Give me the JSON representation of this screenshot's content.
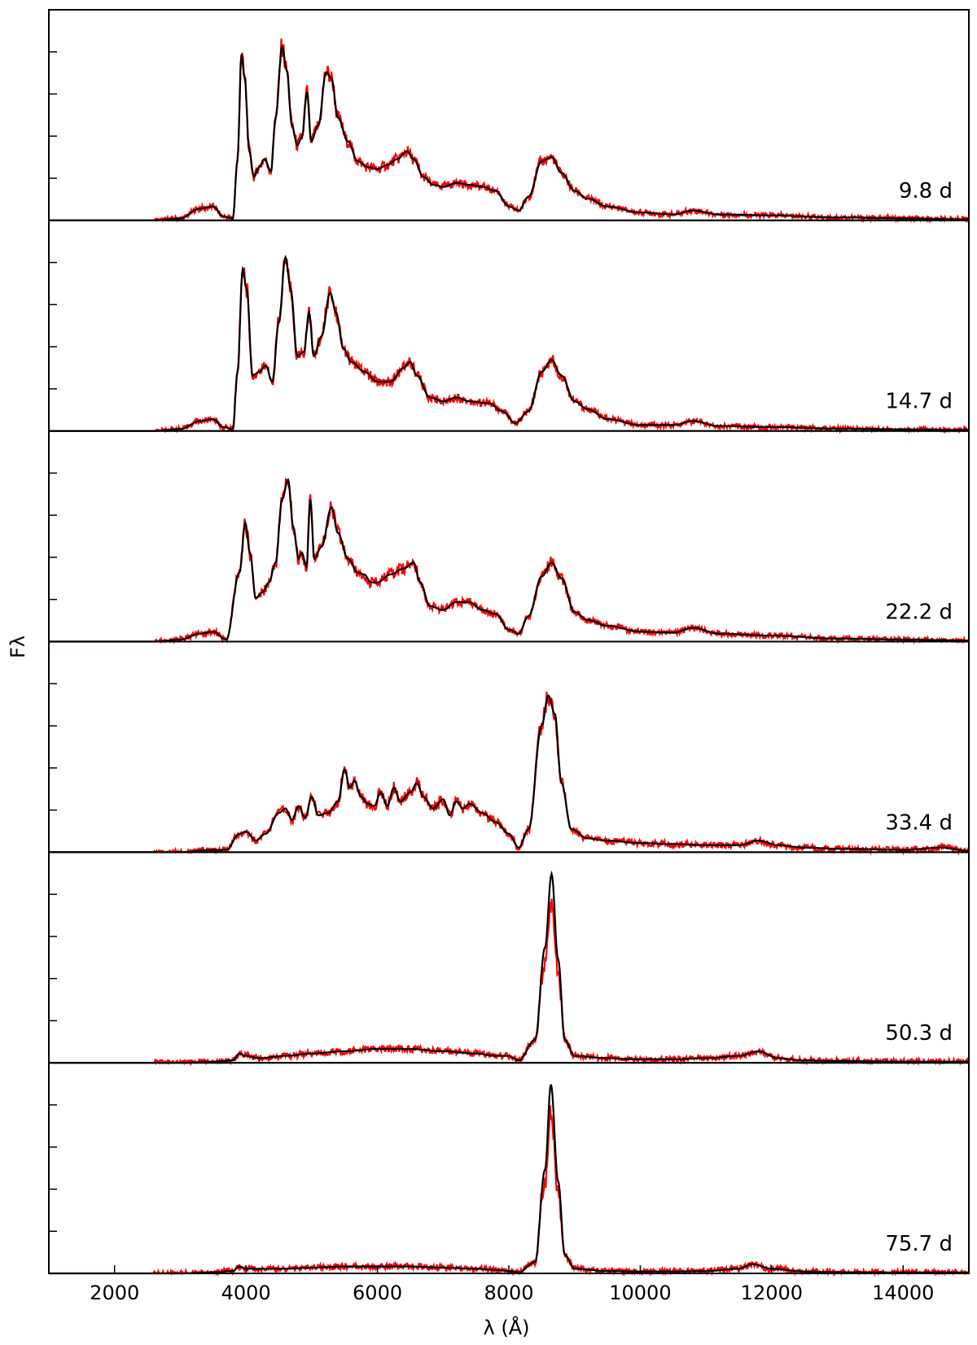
{
  "chart_data": {
    "type": "line",
    "xlabel": "λ (Å)",
    "ylabel": "Fλ",
    "xlim": [
      1000,
      15000
    ],
    "x_ticks": [
      2000,
      4000,
      6000,
      8000,
      10000,
      12000,
      14000
    ],
    "x_tick_labels": [
      "2000",
      "4000",
      "6000",
      "8000",
      "10000",
      "12000",
      "14000"
    ],
    "series_colors": [
      "#ff0000",
      "#000000"
    ],
    "panels": [
      {
        "label": "9.8 d",
        "ylim": [
          0,
          1.05
        ],
        "points": [
          [
            1000,
            0
          ],
          [
            2600,
            0
          ],
          [
            3000,
            0.01
          ],
          [
            3300,
            0.06
          ],
          [
            3500,
            0.07
          ],
          [
            3650,
            0.02
          ],
          [
            3800,
            0.01
          ],
          [
            3870,
            0.3
          ],
          [
            3930,
            0.84
          ],
          [
            3980,
            0.72
          ],
          [
            4050,
            0.35
          ],
          [
            4120,
            0.22
          ],
          [
            4200,
            0.27
          ],
          [
            4280,
            0.31
          ],
          [
            4380,
            0.25
          ],
          [
            4450,
            0.52
          ],
          [
            4550,
            0.88
          ],
          [
            4620,
            0.76
          ],
          [
            4700,
            0.48
          ],
          [
            4780,
            0.38
          ],
          [
            4850,
            0.42
          ],
          [
            4930,
            0.65
          ],
          [
            4990,
            0.4
          ],
          [
            5100,
            0.48
          ],
          [
            5220,
            0.75
          ],
          [
            5300,
            0.72
          ],
          [
            5400,
            0.52
          ],
          [
            5550,
            0.4
          ],
          [
            5700,
            0.3
          ],
          [
            5850,
            0.27
          ],
          [
            6000,
            0.26
          ],
          [
            6150,
            0.28
          ],
          [
            6300,
            0.31
          ],
          [
            6450,
            0.35
          ],
          [
            6550,
            0.31
          ],
          [
            6700,
            0.22
          ],
          [
            6850,
            0.18
          ],
          [
            7000,
            0.17
          ],
          [
            7200,
            0.19
          ],
          [
            7400,
            0.18
          ],
          [
            7600,
            0.17
          ],
          [
            7800,
            0.15
          ],
          [
            8000,
            0.07
          ],
          [
            8150,
            0.05
          ],
          [
            8300,
            0.12
          ],
          [
            8500,
            0.3
          ],
          [
            8650,
            0.32
          ],
          [
            8800,
            0.24
          ],
          [
            9000,
            0.15
          ],
          [
            9200,
            0.11
          ],
          [
            9500,
            0.07
          ],
          [
            10000,
            0.04
          ],
          [
            10500,
            0.03
          ],
          [
            10800,
            0.05
          ],
          [
            11200,
            0.03
          ],
          [
            12000,
            0.025
          ],
          [
            13000,
            0.015
          ],
          [
            14000,
            0.01
          ],
          [
            15000,
            0.005
          ]
        ],
        "model_scale": 1.0
      },
      {
        "label": "14.7 d",
        "ylim": [
          0,
          1.05
        ],
        "points": [
          [
            1000,
            0
          ],
          [
            2600,
            0
          ],
          [
            3000,
            0.01
          ],
          [
            3300,
            0.05
          ],
          [
            3500,
            0.06
          ],
          [
            3650,
            0.02
          ],
          [
            3800,
            0.01
          ],
          [
            3870,
            0.3
          ],
          [
            3950,
            0.82
          ],
          [
            4010,
            0.72
          ],
          [
            4100,
            0.28
          ],
          [
            4200,
            0.3
          ],
          [
            4300,
            0.33
          ],
          [
            4400,
            0.25
          ],
          [
            4500,
            0.55
          ],
          [
            4600,
            0.88
          ],
          [
            4680,
            0.72
          ],
          [
            4780,
            0.38
          ],
          [
            4880,
            0.4
          ],
          [
            4960,
            0.6
          ],
          [
            5030,
            0.38
          ],
          [
            5150,
            0.48
          ],
          [
            5280,
            0.7
          ],
          [
            5370,
            0.6
          ],
          [
            5480,
            0.42
          ],
          [
            5600,
            0.35
          ],
          [
            5800,
            0.3
          ],
          [
            6000,
            0.25
          ],
          [
            6200,
            0.25
          ],
          [
            6400,
            0.32
          ],
          [
            6500,
            0.35
          ],
          [
            6600,
            0.28
          ],
          [
            6800,
            0.17
          ],
          [
            7000,
            0.15
          ],
          [
            7200,
            0.17
          ],
          [
            7400,
            0.15
          ],
          [
            7700,
            0.14
          ],
          [
            7900,
            0.1
          ],
          [
            8100,
            0.04
          ],
          [
            8300,
            0.1
          ],
          [
            8500,
            0.3
          ],
          [
            8650,
            0.36
          ],
          [
            8800,
            0.28
          ],
          [
            9000,
            0.15
          ],
          [
            9200,
            0.11
          ],
          [
            9500,
            0.06
          ],
          [
            10000,
            0.03
          ],
          [
            10500,
            0.03
          ],
          [
            10800,
            0.05
          ],
          [
            11200,
            0.025
          ],
          [
            12000,
            0.02
          ],
          [
            13000,
            0.012
          ],
          [
            14000,
            0.008
          ],
          [
            15000,
            0.005
          ]
        ],
        "model_scale": 1.0
      },
      {
        "label": "22.2 d",
        "ylim": [
          0,
          1.05
        ],
        "points": [
          [
            1000,
            0
          ],
          [
            2600,
            0
          ],
          [
            3000,
            0.01
          ],
          [
            3300,
            0.04
          ],
          [
            3500,
            0.05
          ],
          [
            3700,
            0.01
          ],
          [
            3900,
            0.35
          ],
          [
            3990,
            0.6
          ],
          [
            4060,
            0.45
          ],
          [
            4150,
            0.22
          ],
          [
            4250,
            0.25
          ],
          [
            4350,
            0.3
          ],
          [
            4450,
            0.4
          ],
          [
            4550,
            0.72
          ],
          [
            4640,
            0.82
          ],
          [
            4720,
            0.58
          ],
          [
            4800,
            0.42
          ],
          [
            4850,
            0.45
          ],
          [
            4920,
            0.38
          ],
          [
            4980,
            0.72
          ],
          [
            5040,
            0.42
          ],
          [
            5150,
            0.48
          ],
          [
            5300,
            0.68
          ],
          [
            5400,
            0.55
          ],
          [
            5550,
            0.42
          ],
          [
            5700,
            0.35
          ],
          [
            5800,
            0.34
          ],
          [
            5900,
            0.3
          ],
          [
            6000,
            0.3
          ],
          [
            6200,
            0.34
          ],
          [
            6400,
            0.37
          ],
          [
            6550,
            0.4
          ],
          [
            6650,
            0.3
          ],
          [
            6800,
            0.18
          ],
          [
            7000,
            0.16
          ],
          [
            7200,
            0.2
          ],
          [
            7400,
            0.2
          ],
          [
            7600,
            0.16
          ],
          [
            7800,
            0.14
          ],
          [
            8000,
            0.06
          ],
          [
            8150,
            0.04
          ],
          [
            8300,
            0.13
          ],
          [
            8500,
            0.33
          ],
          [
            8650,
            0.4
          ],
          [
            8800,
            0.32
          ],
          [
            9000,
            0.15
          ],
          [
            9200,
            0.11
          ],
          [
            9500,
            0.08
          ],
          [
            10000,
            0.05
          ],
          [
            10500,
            0.045
          ],
          [
            10800,
            0.07
          ],
          [
            11200,
            0.04
          ],
          [
            12000,
            0.03
          ],
          [
            13000,
            0.015
          ],
          [
            14000,
            0.01
          ],
          [
            15000,
            0.005
          ]
        ],
        "model_scale": 1.0
      },
      {
        "label": "33.4 d",
        "ylim": [
          0,
          0.9
        ],
        "points": [
          [
            1000,
            0
          ],
          [
            3000,
            0
          ],
          [
            3500,
            0.01
          ],
          [
            3700,
            0.01
          ],
          [
            3900,
            0.08
          ],
          [
            4000,
            0.09
          ],
          [
            4150,
            0.05
          ],
          [
            4300,
            0.08
          ],
          [
            4500,
            0.17
          ],
          [
            4600,
            0.19
          ],
          [
            4700,
            0.14
          ],
          [
            4800,
            0.2
          ],
          [
            4900,
            0.15
          ],
          [
            5000,
            0.24
          ],
          [
            5100,
            0.16
          ],
          [
            5250,
            0.17
          ],
          [
            5400,
            0.22
          ],
          [
            5500,
            0.36
          ],
          [
            5580,
            0.28
          ],
          [
            5650,
            0.31
          ],
          [
            5750,
            0.24
          ],
          [
            5850,
            0.21
          ],
          [
            5950,
            0.2
          ],
          [
            6050,
            0.26
          ],
          [
            6150,
            0.2
          ],
          [
            6250,
            0.28
          ],
          [
            6350,
            0.22
          ],
          [
            6500,
            0.26
          ],
          [
            6600,
            0.3
          ],
          [
            6700,
            0.24
          ],
          [
            6850,
            0.19
          ],
          [
            7000,
            0.23
          ],
          [
            7100,
            0.16
          ],
          [
            7200,
            0.22
          ],
          [
            7300,
            0.19
          ],
          [
            7400,
            0.21
          ],
          [
            7600,
            0.17
          ],
          [
            7800,
            0.13
          ],
          [
            8000,
            0.08
          ],
          [
            8150,
            0.02
          ],
          [
            8300,
            0.1
          ],
          [
            8500,
            0.55
          ],
          [
            8600,
            0.68
          ],
          [
            8700,
            0.6
          ],
          [
            8800,
            0.3
          ],
          [
            8950,
            0.1
          ],
          [
            9200,
            0.06
          ],
          [
            9500,
            0.05
          ],
          [
            10000,
            0.04
          ],
          [
            10500,
            0.035
          ],
          [
            11000,
            0.03
          ],
          [
            11500,
            0.03
          ],
          [
            11800,
            0.05
          ],
          [
            12100,
            0.03
          ],
          [
            12500,
            0.02
          ],
          [
            13000,
            0.015
          ],
          [
            14000,
            0.01
          ],
          [
            14600,
            0.02
          ],
          [
            15000,
            0.005
          ]
        ],
        "model_scale": 1.0
      },
      {
        "label": "50.3 d",
        "ylim": [
          0,
          0.9
        ],
        "points": [
          [
            1000,
            0
          ],
          [
            3000,
            0
          ],
          [
            3500,
            0.005
          ],
          [
            3800,
            0.01
          ],
          [
            3900,
            0.04
          ],
          [
            4000,
            0.03
          ],
          [
            4200,
            0.02
          ],
          [
            4600,
            0.03
          ],
          [
            5000,
            0.04
          ],
          [
            5500,
            0.05
          ],
          [
            6000,
            0.06
          ],
          [
            6500,
            0.06
          ],
          [
            7000,
            0.05
          ],
          [
            7500,
            0.04
          ],
          [
            7800,
            0.03
          ],
          [
            8000,
            0.03
          ],
          [
            8150,
            0.01
          ],
          [
            8400,
            0.1
          ],
          [
            8550,
            0.5
          ],
          [
            8650,
            0.82
          ],
          [
            8750,
            0.45
          ],
          [
            8850,
            0.1
          ],
          [
            9000,
            0.03
          ],
          [
            9500,
            0.02
          ],
          [
            10000,
            0.015
          ],
          [
            10500,
            0.015
          ],
          [
            11000,
            0.02
          ],
          [
            11500,
            0.03
          ],
          [
            11800,
            0.05
          ],
          [
            12100,
            0.02
          ],
          [
            12500,
            0.01
          ],
          [
            13000,
            0.008
          ],
          [
            14000,
            0.005
          ],
          [
            15000,
            0.005
          ]
        ],
        "model_scale": 1.0
      },
      {
        "label": "75.7 d",
        "ylim": [
          0,
          0.9
        ],
        "points": [
          [
            1000,
            0
          ],
          [
            3000,
            0
          ],
          [
            3500,
            0.005
          ],
          [
            3800,
            0.01
          ],
          [
            3900,
            0.03
          ],
          [
            4000,
            0.02
          ],
          [
            4200,
            0.02
          ],
          [
            4600,
            0.02
          ],
          [
            5000,
            0.025
          ],
          [
            5500,
            0.03
          ],
          [
            6000,
            0.03
          ],
          [
            6500,
            0.03
          ],
          [
            7000,
            0.025
          ],
          [
            7500,
            0.02
          ],
          [
            7800,
            0.015
          ],
          [
            8000,
            0.01
          ],
          [
            8150,
            0.005
          ],
          [
            8400,
            0.05
          ],
          [
            8550,
            0.45
          ],
          [
            8640,
            0.82
          ],
          [
            8750,
            0.4
          ],
          [
            8850,
            0.08
          ],
          [
            9000,
            0.02
          ],
          [
            9500,
            0.01
          ],
          [
            10000,
            0.008
          ],
          [
            10500,
            0.008
          ],
          [
            11000,
            0.01
          ],
          [
            11500,
            0.02
          ],
          [
            11700,
            0.04
          ],
          [
            12000,
            0.02
          ],
          [
            12500,
            0.008
          ],
          [
            13000,
            0.005
          ],
          [
            14000,
            0.004
          ],
          [
            15000,
            0.004
          ]
        ],
        "model_scale": 1.0
      }
    ]
  }
}
